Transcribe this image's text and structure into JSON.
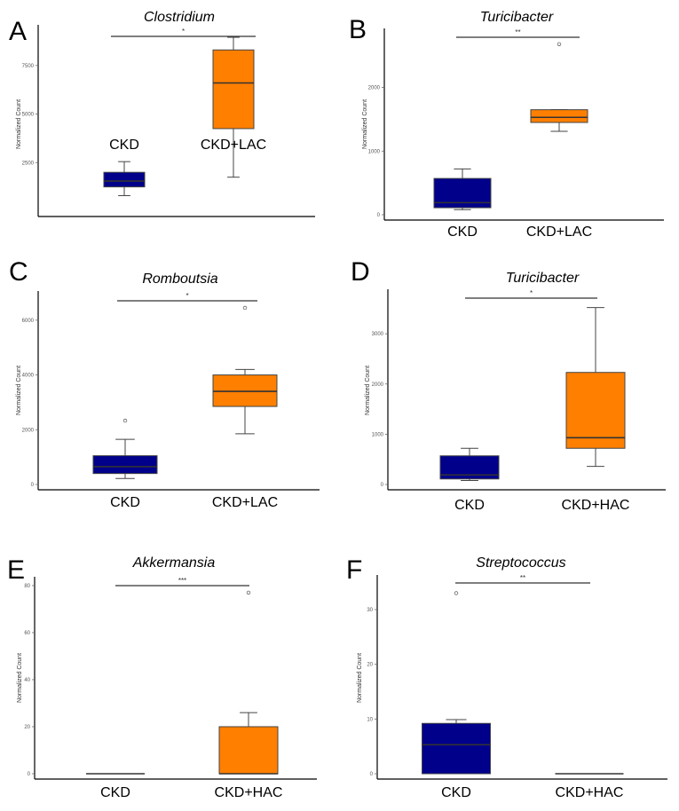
{
  "colors": {
    "blue": "#00008b",
    "orange": "#ff7f00",
    "axis": "#000000",
    "line": "#444444",
    "bg": "#ffffff"
  },
  "ylabel": "Normalized Count",
  "chart_data": [
    {
      "panel": "A",
      "type": "boxplot",
      "title": "Clostridium",
      "ylabel": "Normalized Count",
      "ylim": [
        0,
        9500
      ],
      "yticks": [
        {
          "v": 2500,
          "label": "2500"
        },
        {
          "v": 5000,
          "label": "5000"
        },
        {
          "v": 7500,
          "label": "7500"
        }
      ],
      "categories": [
        "CKD",
        "CKD+LAC"
      ],
      "boxes": [
        {
          "name": "CKD",
          "min": 800,
          "q1": 1250,
          "median": 1550,
          "q3": 2000,
          "max": 2550,
          "outliers": [],
          "color": "blue"
        },
        {
          "name": "CKD+LAC",
          "min": 1750,
          "q1": 4250,
          "median": 6600,
          "q3": 8300,
          "max": 8950,
          "outliers": [],
          "color": "orange"
        }
      ],
      "significance": "*"
    },
    {
      "panel": "B",
      "type": "boxplot",
      "title": "Turicibacter",
      "ylabel": "Normalized Count",
      "ylim": [
        0,
        2900
      ],
      "yticks": [
        {
          "v": 0,
          "label": "0"
        },
        {
          "v": 1000,
          "label": "1000"
        },
        {
          "v": 2000,
          "label": "2000"
        }
      ],
      "categories": [
        "CKD",
        "CKD+LAC"
      ],
      "boxes": [
        {
          "name": "CKD",
          "min": 80,
          "q1": 110,
          "median": 190,
          "q3": 570,
          "max": 720,
          "outliers": [],
          "color": "blue"
        },
        {
          "name": "CKD+LAC",
          "min": 1310,
          "q1": 1450,
          "median": 1530,
          "q3": 1650,
          "max": 1650,
          "outliers": [
            2680
          ],
          "color": "orange"
        }
      ],
      "significance": "**"
    },
    {
      "panel": "C",
      "type": "boxplot",
      "title": "Romboutsia",
      "ylabel": "Normalized Count",
      "ylim": [
        0,
        7000
      ],
      "yticks": [
        {
          "v": 0,
          "label": "0"
        },
        {
          "v": 2000,
          "label": "2000"
        },
        {
          "v": 4000,
          "label": "4000"
        },
        {
          "v": 6000,
          "label": "6000"
        }
      ],
      "categories": [
        "CKD",
        "CKD+LAC"
      ],
      "boxes": [
        {
          "name": "CKD",
          "min": 220,
          "q1": 400,
          "median": 650,
          "q3": 1050,
          "max": 1650,
          "outliers": [
            2330
          ],
          "color": "blue"
        },
        {
          "name": "CKD+LAC",
          "min": 1850,
          "q1": 2850,
          "median": 3400,
          "q3": 4000,
          "max": 4200,
          "outliers": [
            6450
          ],
          "color": "orange"
        }
      ],
      "significance": "*"
    },
    {
      "panel": "D",
      "type": "boxplot",
      "title": "Turicibacter",
      "ylabel": "Normalized Count",
      "ylim": [
        0,
        3850
      ],
      "yticks": [
        {
          "v": 0,
          "label": "0"
        },
        {
          "v": 1000,
          "label": "1000"
        },
        {
          "v": 2000,
          "label": "2000"
        },
        {
          "v": 3000,
          "label": "3000"
        }
      ],
      "categories": [
        "CKD",
        "CKD+HAC"
      ],
      "boxes": [
        {
          "name": "CKD",
          "min": 80,
          "q1": 110,
          "median": 190,
          "q3": 570,
          "max": 720,
          "outliers": [],
          "color": "blue"
        },
        {
          "name": "CKD+HAC",
          "min": 360,
          "q1": 720,
          "median": 930,
          "q3": 2230,
          "max": 3520,
          "outliers": [],
          "color": "orange"
        }
      ],
      "significance": "*"
    },
    {
      "panel": "E",
      "type": "boxplot",
      "title": "Akkermansia",
      "ylabel": "Normalized Count",
      "ylim": [
        0,
        83
      ],
      "yticks": [
        {
          "v": 0,
          "label": "0"
        },
        {
          "v": 20,
          "label": "20"
        },
        {
          "v": 40,
          "label": "40"
        },
        {
          "v": 60,
          "label": "60"
        },
        {
          "v": 80,
          "label": "80"
        }
      ],
      "categories": [
        "CKD",
        "CKD+HAC"
      ],
      "boxes": [
        {
          "name": "CKD",
          "min": 0,
          "q1": 0,
          "median": 0,
          "q3": 0,
          "max": 0,
          "outliers": [],
          "color": "blue"
        },
        {
          "name": "CKD+HAC",
          "min": 0,
          "q1": 0,
          "median": 0,
          "q3": 20,
          "max": 26,
          "outliers": [
            77
          ],
          "color": "orange"
        }
      ],
      "significance": "***"
    },
    {
      "panel": "F",
      "type": "boxplot",
      "title": "Streptococcus",
      "ylabel": "Normalized Count",
      "ylim": [
        0,
        36
      ],
      "yticks": [
        {
          "v": 0,
          "label": "0"
        },
        {
          "v": 10,
          "label": "10"
        },
        {
          "v": 20,
          "label": "20"
        },
        {
          "v": 30,
          "label": "30"
        }
      ],
      "categories": [
        "CKD",
        "CKD+HAC"
      ],
      "boxes": [
        {
          "name": "CKD",
          "min": 0,
          "q1": 0,
          "median": 5.3,
          "q3": 9.2,
          "max": 9.9,
          "outliers": [
            33
          ],
          "color": "blue"
        },
        {
          "name": "CKD+HAC",
          "min": 0,
          "q1": 0,
          "median": 0,
          "q3": 0,
          "max": 0,
          "outliers": [],
          "color": "orange"
        }
      ],
      "significance": "**"
    }
  ]
}
